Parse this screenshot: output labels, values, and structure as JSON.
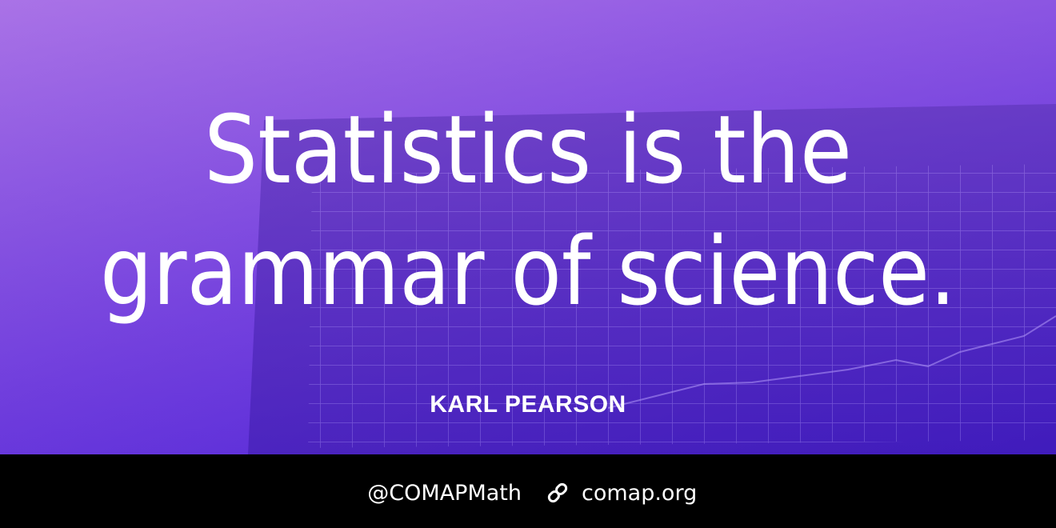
{
  "quote": {
    "lines": [
      "Statistics is the",
      "grammar of science."
    ],
    "author": "KARL PEARSON"
  },
  "footer": {
    "handle": "@COMAPMath",
    "website": "comap.org"
  }
}
